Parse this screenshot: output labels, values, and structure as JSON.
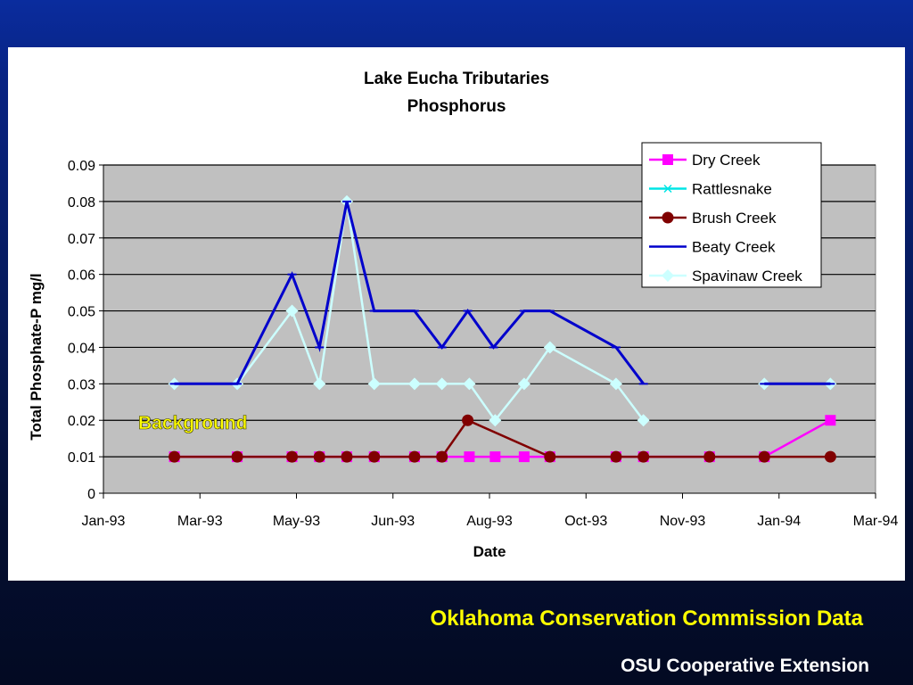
{
  "footer": {
    "source": "Oklahoma Conservation Commission Data",
    "credit": "OSU Cooperative Extension"
  },
  "chart_data": {
    "type": "line",
    "title": "Lake Eucha Tributaries",
    "subtitle": "Phosphorus",
    "xlabel": "Date",
    "ylabel": "Total Phosphate-P mg/l",
    "x_axis": {
      "type": "date",
      "range": [
        "1993-01-01",
        "1994-03-01"
      ],
      "tick_labels": [
        "Jan-93",
        "Mar-93",
        "May-93",
        "Jun-93",
        "Aug-93",
        "Oct-93",
        "Nov-93",
        "Jan-94",
        "Mar-94"
      ],
      "tick_dates": [
        "1993-01-01",
        "1993-03-01",
        "1993-04-30",
        "1993-06-29",
        "1993-08-28",
        "1993-10-27",
        "1993-12-26",
        "1994-02-24",
        "1994-04-25"
      ]
    },
    "y_axis": {
      "range": [
        0,
        0.09
      ],
      "tick_labels": [
        "0",
        "0.01",
        "0.02",
        "0.03",
        "0.04",
        "0.05",
        "0.06",
        "0.07",
        "0.08",
        "0.09"
      ],
      "ticks": [
        0,
        0.01,
        0.02,
        0.03,
        0.04,
        0.05,
        0.06,
        0.07,
        0.08,
        0.09
      ]
    },
    "grid": true,
    "legend_position": "top-right",
    "annotation": {
      "text": "Background",
      "color": "#ffff00"
    },
    "colors": {
      "plot_background": "#c0c0c0",
      "gridline": "#000000"
    },
    "series": [
      {
        "name": "Dry Creek",
        "color": "#ff00ff",
        "marker": "square",
        "points": [
          [
            "1993-02-14",
            0.01
          ],
          [
            "1993-03-25",
            0.01
          ],
          [
            "1993-04-28",
            0.01
          ],
          [
            "1993-05-15",
            0.01
          ],
          [
            "1993-06-01",
            0.01
          ],
          [
            "1993-06-18",
            0.01
          ],
          [
            "1993-07-13",
            0.01
          ],
          [
            "1993-07-30",
            0.01
          ],
          [
            "1993-08-16",
            0.01
          ],
          [
            "1993-09-01",
            0.01
          ],
          [
            "1993-09-19",
            0.01
          ],
          [
            "1993-10-05",
            0.01
          ],
          [
            "1993-11-15",
            0.01
          ],
          [
            "1993-12-02",
            0.01
          ],
          [
            "1994-01-12",
            0.01
          ],
          [
            "1994-02-15",
            0.01
          ],
          [
            "1994-03-28",
            0.02
          ]
        ]
      },
      {
        "name": "Rattlesnake",
        "color": "#00e5e5",
        "marker": "x",
        "points": []
      },
      {
        "name": "Brush Creek",
        "color": "#800000",
        "marker": "circle",
        "points": [
          [
            "1993-02-14",
            0.01
          ],
          [
            "1993-03-25",
            0.01
          ],
          [
            "1993-04-28",
            0.01
          ],
          [
            "1993-05-15",
            0.01
          ],
          [
            "1993-06-01",
            0.01
          ],
          [
            "1993-06-18",
            0.01
          ],
          [
            "1993-07-13",
            0.01
          ],
          [
            "1993-07-30",
            0.01
          ],
          [
            "1993-08-15",
            0.02
          ],
          [
            "1993-10-05",
            0.01
          ],
          [
            "1993-11-15",
            0.01
          ],
          [
            "1993-12-02",
            0.01
          ],
          [
            "1994-01-12",
            0.01
          ],
          [
            "1994-02-15",
            0.01
          ],
          [
            "1994-03-28",
            0.01
          ]
        ]
      },
      {
        "name": "Beaty Creek",
        "color": "#0000cc",
        "marker": "dash",
        "points": [
          [
            "1993-02-14",
            0.03
          ],
          [
            "1993-03-25",
            0.03
          ],
          [
            "1993-04-28",
            0.06
          ],
          [
            "1993-05-15",
            0.04
          ],
          [
            "1993-06-01",
            0.08
          ],
          [
            "1993-06-18",
            0.05
          ],
          [
            "1993-07-13",
            0.05
          ],
          [
            "1993-07-30",
            0.04
          ],
          [
            "1993-08-15",
            0.05
          ],
          [
            "1993-08-31",
            0.04
          ],
          [
            "1993-09-19",
            0.05
          ],
          [
            "1993-10-05",
            0.05
          ],
          [
            "1993-11-15",
            0.04
          ],
          [
            "1993-12-02",
            0.03
          ],
          null,
          [
            "1994-02-15",
            0.03
          ],
          [
            "1994-03-28",
            0.03
          ]
        ]
      },
      {
        "name": "Spavinaw Creek",
        "color": "#ccffff",
        "marker": "diamond",
        "points": [
          [
            "1993-02-14",
            0.03
          ],
          [
            "1993-03-25",
            0.03
          ],
          [
            "1993-04-28",
            0.05
          ],
          [
            "1993-05-15",
            0.03
          ],
          [
            "1993-06-01",
            0.08
          ],
          [
            "1993-06-18",
            0.03
          ],
          [
            "1993-07-13",
            0.03
          ],
          [
            "1993-07-30",
            0.03
          ],
          [
            "1993-08-16",
            0.03
          ],
          [
            "1993-09-01",
            0.02
          ],
          [
            "1993-09-19",
            0.03
          ],
          [
            "1993-10-05",
            0.04
          ],
          [
            "1993-11-15",
            0.03
          ],
          [
            "1993-12-02",
            0.02
          ],
          null,
          [
            "1994-02-15",
            0.03
          ],
          [
            "1994-03-28",
            0.03
          ]
        ]
      }
    ]
  }
}
